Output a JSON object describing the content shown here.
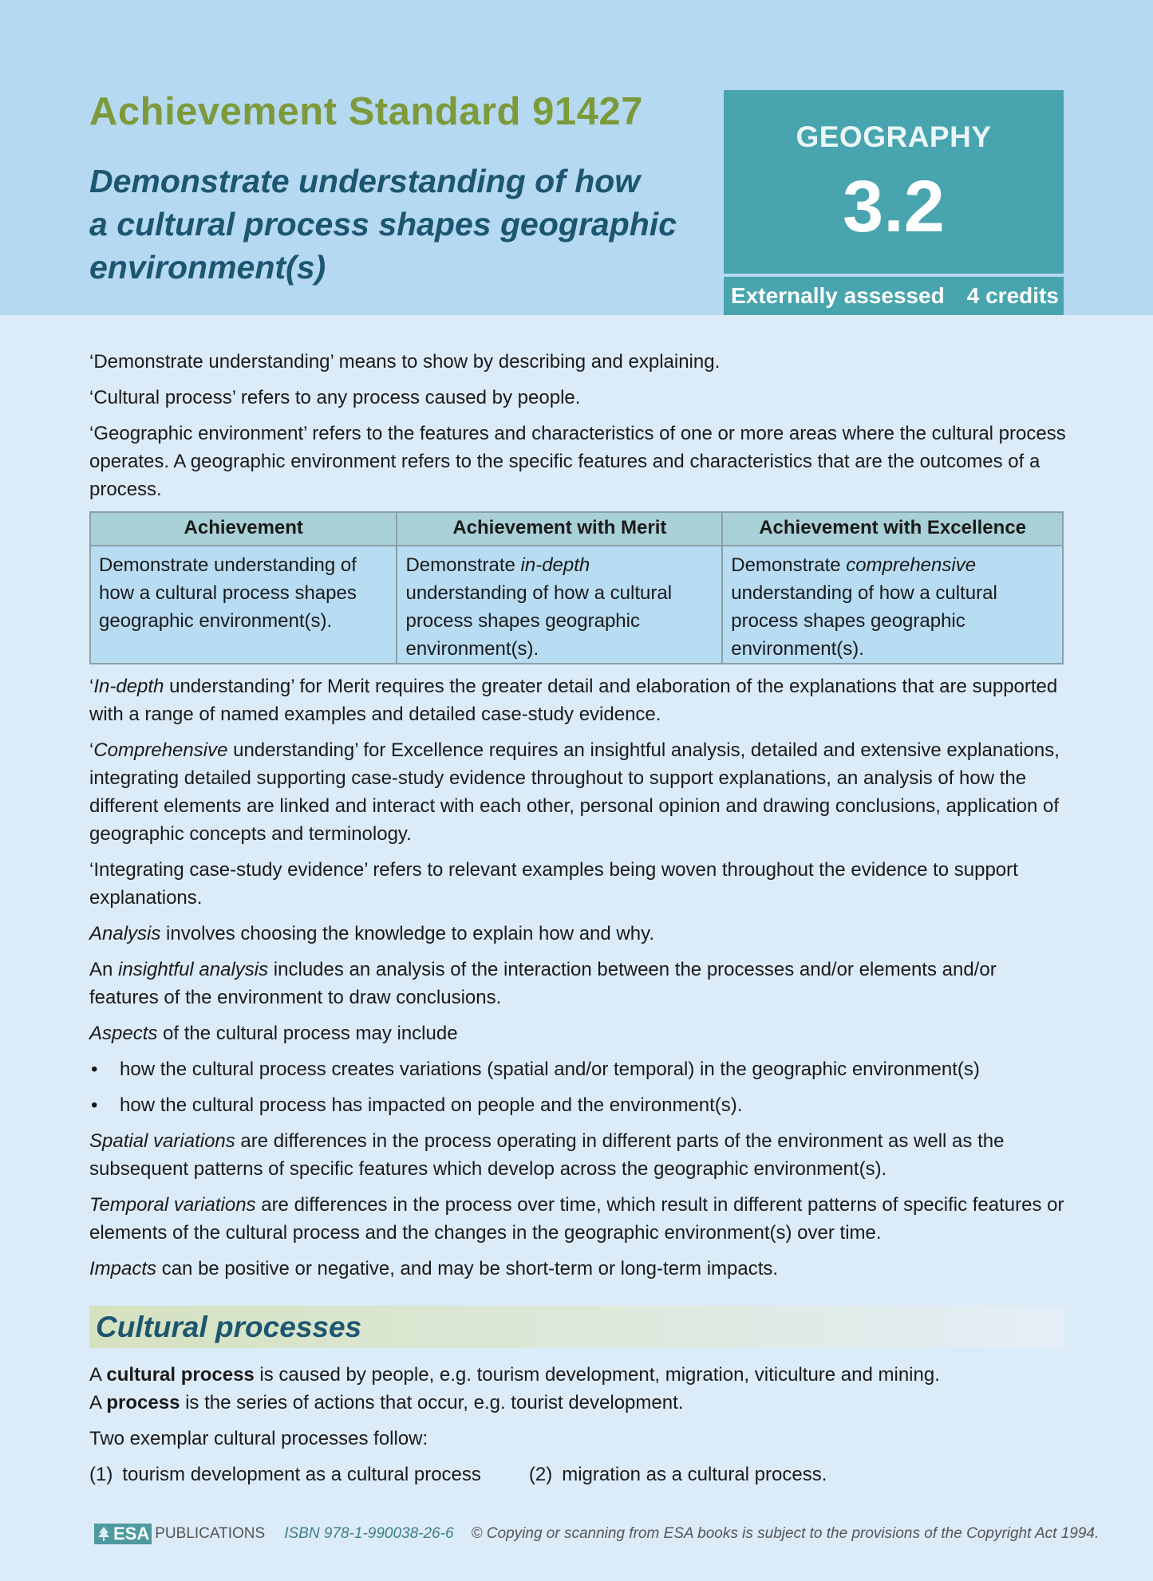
{
  "header": {
    "standard": "Achievement Standard 91427",
    "title_lines": [
      "Demonstrate understanding of how",
      "a cultural process shapes geographic",
      "environment(s)"
    ],
    "subject": "GEOGRAPHY",
    "number": "3.2",
    "assessment": "Externally assessed",
    "credits": "4 credits"
  },
  "definitions": [
    [
      "‘Demonstrate understanding’ means to show by describing and explaining."
    ],
    [
      "‘Cultural process’ refers to any process caused by people."
    ],
    [
      "‘Geographic environment’ refers to the features and characteristics of one or more areas where the cultural process operates. A geographic environment refers to the specific features and characteristics that are the outcomes of a process."
    ]
  ],
  "table": {
    "headers": [
      "Achievement",
      "Achievement with Merit",
      "Achievement with Excellence"
    ],
    "cells": [
      [
        "Demonstrate understanding of how a cultural process shapes geographic environment(s)."
      ],
      [
        "Demonstrate ",
        {
          "text": "in-depth",
          "style": "italic"
        },
        " understanding of how a cultural process shapes geographic environment(s)."
      ],
      [
        "Demonstrate ",
        {
          "text": "comprehensive",
          "style": "italic"
        },
        " understanding of how a cultural process shapes geographic environment(s)."
      ]
    ]
  },
  "notes": [
    [
      "‘",
      {
        "text": "In-depth",
        "style": "italic"
      },
      " understanding’ for Merit requires the greater detail and elaboration of the explanations that are supported with a range of named examples and detailed case-study evidence."
    ],
    [
      "‘",
      {
        "text": "Comprehensive",
        "style": "italic"
      },
      " understanding’ for Excellence requires an insightful analysis, detailed and extensive explanations, integrating detailed supporting case-study evidence throughout to support explanations, an analysis of how the different elements are linked and interact with each other, personal opinion and drawing conclusions, application of geographic concepts and terminology."
    ],
    [
      "‘Integrating case-study evidence’ refers to relevant examples being woven throughout the evidence to support explanations."
    ],
    [
      {
        "text": "Analysis",
        "style": "italic"
      },
      " involves choosing the knowledge to explain how and why."
    ],
    [
      "An ",
      {
        "text": "insightful analysis",
        "style": "italic"
      },
      " includes an analysis of the interaction between the processes and/or elements and/or features of the environment to draw conclusions."
    ],
    [
      {
        "text": "Aspects",
        "style": "italic"
      },
      " of the cultural process may include"
    ]
  ],
  "bullets": [
    "how the cultural process creates variations (spatial and/or temporal) in the geographic environment(s)",
    "how the cultural process has impacted on people and the environment(s)."
  ],
  "more_notes": [
    [
      {
        "text": "Spatial variations",
        "style": "italic"
      },
      " are differences in the process operating in different parts of the environment as well as the subsequent patterns of specific features which develop across the geographic environment(s)."
    ],
    [
      {
        "text": "Temporal variations",
        "style": "italic"
      },
      " are differences in the process over time, which result in different patterns of specific features or elements of the cultural process and the changes in the geographic environment(s) over time."
    ],
    [
      {
        "text": "Impacts",
        "style": "italic"
      },
      " can be positive or negative, and may be short-term or long-term impacts."
    ]
  ],
  "section": {
    "heading": "Cultural processes",
    "paragraphs": [
      [
        "A ",
        {
          "text": "cultural process",
          "style": "bold"
        },
        " is caused by people, e.g. tourism development, migration, viticulture and mining."
      ],
      [
        "A ",
        {
          "text": "process",
          "style": "bold"
        },
        " is the series of actions that occur, e.g. tourist development."
      ],
      [
        "Two exemplar cultural processes follow:"
      ]
    ],
    "items": [
      {
        "number": "(1)",
        "text": "tourism development as a cultural process"
      },
      {
        "number": "(2)",
        "text": "migration as a cultural process."
      }
    ]
  },
  "footer": {
    "logo": "ESA",
    "publisher": "PUBLICATIONS",
    "isbn": "ISBN 978-1-990038-26-6",
    "copyright": "© Copying or scanning from ESA books is subject to the provisions of the Copyright Act 1994."
  }
}
